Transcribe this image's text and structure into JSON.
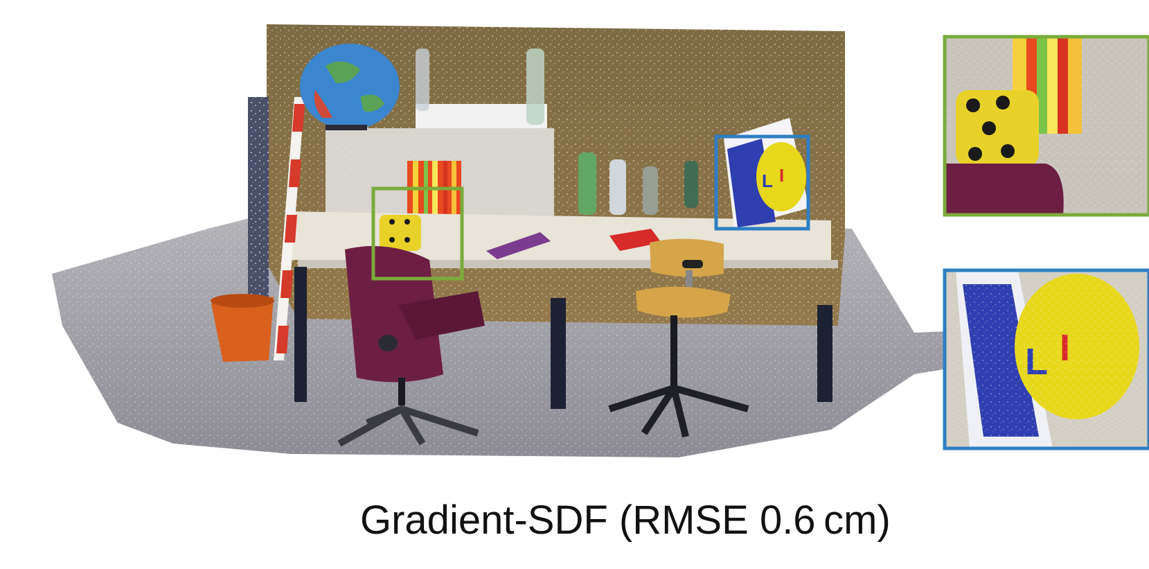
{
  "figure": {
    "caption": {
      "method": "Gradient-SDF",
      "metric": "RMSE",
      "value": "0.6",
      "unit": "cm"
    },
    "colors": {
      "zoom_green": "#7aab3a",
      "zoom_blue": "#2d7fc3",
      "wall": "#8a7348",
      "floor": "#9a9aa1",
      "desk": "#e8e4d8",
      "chair_purple": "#6d1f43",
      "chair_yellow": "#d6a54a",
      "dice": "#e8d22a",
      "bucket": "#d9611d",
      "globe": "#3b86cf"
    },
    "zoom_panels": [
      {
        "name": "zoom-green",
        "color": "green"
      },
      {
        "name": "zoom-blue",
        "color": "blue"
      }
    ]
  }
}
